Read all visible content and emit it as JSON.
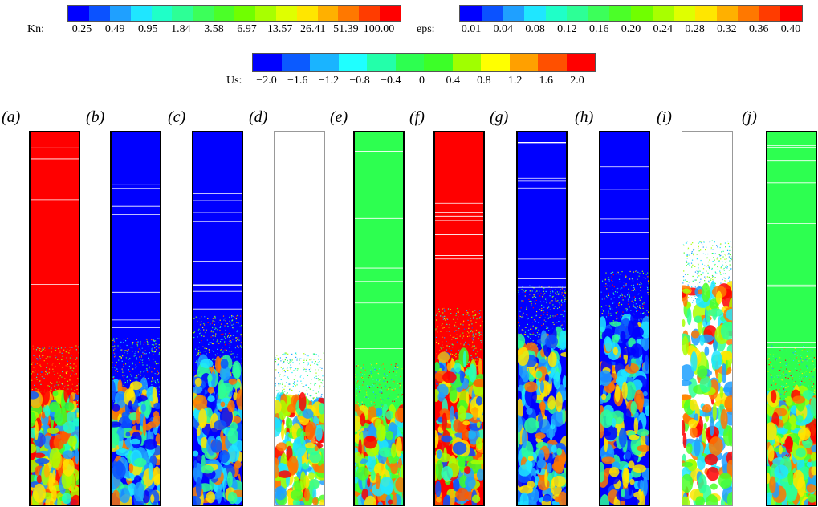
{
  "colorbars": {
    "kn": {
      "name": "Kn:",
      "ticks": [
        "0.25",
        "0.49",
        "0.95",
        "1.84",
        "3.58",
        "6.97",
        "13.57",
        "26.41",
        "51.39",
        "100.00"
      ],
      "colors": [
        "#0000ff",
        "#0b52ff",
        "#1fa0ff",
        "#1fe6ff",
        "#1fffc8",
        "#2dff96",
        "#3cff5a",
        "#4bff28",
        "#70ff00",
        "#a8ff00",
        "#dfff00",
        "#ffe600",
        "#ffb000",
        "#ff7800",
        "#ff3c00",
        "#ff0000"
      ]
    },
    "eps": {
      "name": "eps:",
      "ticks": [
        "0.01",
        "0.04",
        "0.08",
        "0.12",
        "0.16",
        "0.20",
        "0.24",
        "0.28",
        "0.32",
        "0.36",
        "0.40"
      ],
      "colors": [
        "#0000ff",
        "#0b52ff",
        "#1fa0ff",
        "#1fe6ff",
        "#1fffc8",
        "#2dff96",
        "#3cff5a",
        "#4bff28",
        "#70ff00",
        "#a8ff00",
        "#dfff00",
        "#ffe600",
        "#ffb000",
        "#ff7800",
        "#ff3c00",
        "#ff0000"
      ]
    },
    "us": {
      "name": "Us:",
      "ticks": [
        "−2.0",
        "−1.6",
        "−1.2",
        "−0.8",
        "−0.4",
        "0",
        "0.4",
        "0.8",
        "1.2",
        "1.6",
        "2.0"
      ],
      "colors": [
        "#0000ff",
        "#0b5aff",
        "#1ab4ff",
        "#1fffff",
        "#23ffaa",
        "#2dff50",
        "#3cff28",
        "#a0ff00",
        "#ffff00",
        "#ffa000",
        "#ff5000",
        "#ff0000"
      ]
    }
  },
  "panels": [
    {
      "label": "(a)",
      "field": "Kn",
      "base": "#ff0000",
      "white_top": false,
      "front": 0.3
    },
    {
      "label": "(b)",
      "field": "eps",
      "base": "#0000ff",
      "white_top": false,
      "front": 0.32
    },
    {
      "label": "(c)",
      "field": "eps",
      "base": "#0000ff",
      "white_top": false,
      "front": 0.38
    },
    {
      "label": "(d)",
      "field": "Us",
      "base": "#ffffff",
      "white_top": true,
      "front": 0.28
    },
    {
      "label": "(e)",
      "field": "Us",
      "base": "#2dff50",
      "white_top": false,
      "front": 0.25
    },
    {
      "label": "(f)",
      "field": "Kn",
      "base": "#ff0000",
      "white_top": false,
      "front": 0.4
    },
    {
      "label": "(g)",
      "field": "eps",
      "base": "#0000ff",
      "white_top": false,
      "front": 0.46
    },
    {
      "label": "(h)",
      "field": "eps",
      "base": "#0000ff",
      "white_top": false,
      "front": 0.5
    },
    {
      "label": "(i)",
      "field": "Us",
      "base": "#ffffff",
      "white_top": true,
      "front": 0.58
    },
    {
      "label": "(j)",
      "field": "Us",
      "base": "#2dff50",
      "white_top": false,
      "front": 0.3
    }
  ]
}
